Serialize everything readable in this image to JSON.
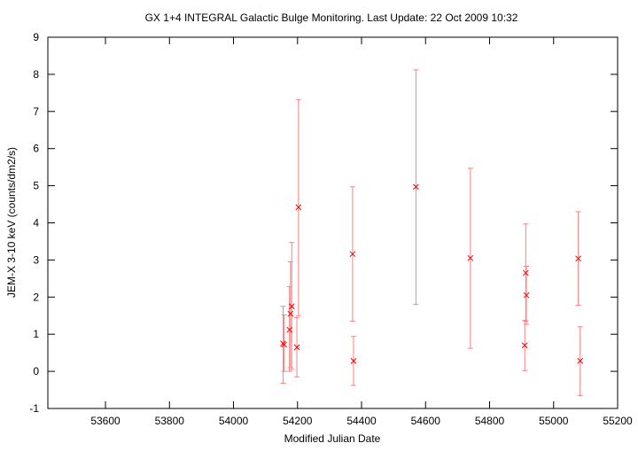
{
  "chart_data": {
    "type": "scatter",
    "title": "GX 1+4   INTEGRAL Galactic Bulge Monitoring.  Last Update: 22 Oct 2009 10:32",
    "xlabel": "Modified Julian Date",
    "ylabel": "JEM-X 3-10 keV (counts/dm2/s)",
    "xlim": [
      53420,
      55200
    ],
    "ylim": [
      -1,
      9
    ],
    "xticks": [
      53600,
      53800,
      54000,
      54200,
      54400,
      54600,
      54800,
      55000,
      55200
    ],
    "yticks": [
      -1,
      0,
      1,
      2,
      3,
      4,
      5,
      6,
      7,
      8,
      9
    ],
    "grid": false,
    "legend": "none",
    "color": "#ff0000",
    "error_bar_color": "#ff8080",
    "points": [
      {
        "x": 54155,
        "y": 0.75,
        "yerr_low": -0.32,
        "yerr_high": 1.75
      },
      {
        "x": 54158,
        "y": 0.72,
        "yerr_low": 0.0,
        "yerr_high": 1.52
      },
      {
        "x": 54175,
        "y": 1.12,
        "yerr_low": 0.0,
        "yerr_high": 2.28
      },
      {
        "x": 54178,
        "y": 1.55,
        "yerr_low": 0.1,
        "yerr_high": 2.95
      },
      {
        "x": 54182,
        "y": 1.75,
        "yerr_low": 0.05,
        "yerr_high": 3.47
      },
      {
        "x": 54198,
        "y": 0.65,
        "yerr_low": -0.15,
        "yerr_high": 1.45
      },
      {
        "x": 54203,
        "y": 4.42,
        "yerr_low": 1.5,
        "yerr_high": 7.32
      },
      {
        "x": 54372,
        "y": 3.16,
        "yerr_low": 1.35,
        "yerr_high": 4.97
      },
      {
        "x": 54375,
        "y": 0.28,
        "yerr_low": -0.38,
        "yerr_high": 0.94
      },
      {
        "x": 54570,
        "y": 4.97,
        "yerr_low": 1.8,
        "yerr_high": 8.12
      },
      {
        "x": 54740,
        "y": 3.05,
        "yerr_low": 0.62,
        "yerr_high": 5.47
      },
      {
        "x": 54910,
        "y": 0.7,
        "yerr_low": 0.02,
        "yerr_high": 1.37
      },
      {
        "x": 54913,
        "y": 2.65,
        "yerr_low": 1.35,
        "yerr_high": 3.97
      },
      {
        "x": 54915,
        "y": 2.05,
        "yerr_low": 1.27,
        "yerr_high": 2.83
      },
      {
        "x": 55077,
        "y": 3.04,
        "yerr_low": 1.78,
        "yerr_high": 4.3
      },
      {
        "x": 55083,
        "y": 0.28,
        "yerr_low": -0.65,
        "yerr_high": 1.2
      }
    ]
  }
}
